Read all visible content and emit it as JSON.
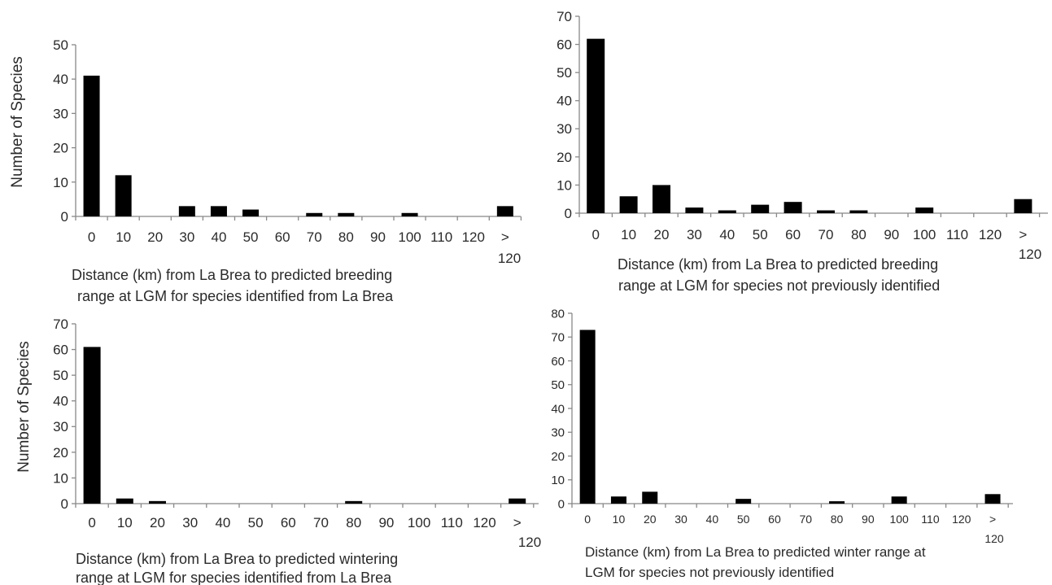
{
  "chart_data": [
    {
      "type": "bar",
      "categories": [
        "0",
        "10",
        "20",
        "30",
        "40",
        "50",
        "60",
        "70",
        "80",
        "90",
        "100",
        "110",
        "120",
        "> 120"
      ],
      "values": [
        41,
        12,
        0,
        3,
        3,
        2,
        0,
        1,
        1,
        0,
        1,
        0,
        0,
        3
      ],
      "ylabel": "Number  of Species",
      "xlabel_lines": [
        "Distance (km)  from La Brea to predicted  breeding",
        "range at LGM for species identified  from La Brea"
      ],
      "ylim": [
        0,
        50
      ],
      "yticks": [
        0,
        10,
        20,
        30,
        40,
        50
      ],
      "grid": false
    },
    {
      "type": "bar",
      "categories": [
        "0",
        "10",
        "20",
        "30",
        "40",
        "50",
        "60",
        "70",
        "80",
        "90",
        "100",
        "110",
        "120",
        "> 120"
      ],
      "values": [
        62,
        6,
        10,
        2,
        1,
        3,
        4,
        1,
        1,
        0,
        2,
        0,
        0,
        5
      ],
      "ylabel": "",
      "xlabel_lines": [
        "Distance (km)  from La Brea to predicted  breeding",
        "range at LGM for species not previously identified"
      ],
      "ylim": [
        0,
        70
      ],
      "yticks": [
        0,
        10,
        20,
        30,
        40,
        50,
        60,
        70
      ],
      "grid": false
    },
    {
      "type": "bar",
      "categories": [
        "0",
        "10",
        "20",
        "30",
        "40",
        "50",
        "60",
        "70",
        "80",
        "90",
        "100",
        "110",
        "120",
        "> 120"
      ],
      "values": [
        61,
        2,
        1,
        0,
        0,
        0,
        0,
        0,
        1,
        0,
        0,
        0,
        0,
        2
      ],
      "ylabel": "Number  of Species",
      "xlabel_lines": [
        "Distance (km)  from La Brea to predicted  wintering",
        "range at LGM for species identified  from La Brea"
      ],
      "ylim": [
        0,
        70
      ],
      "yticks": [
        0,
        10,
        20,
        30,
        40,
        50,
        60,
        70
      ],
      "grid": false
    },
    {
      "type": "bar",
      "categories": [
        "0",
        "10",
        "20",
        "30",
        "40",
        "50",
        "60",
        "70",
        "80",
        "90",
        "100",
        "110",
        "120",
        "> 120"
      ],
      "values": [
        73,
        3,
        5,
        0,
        0,
        2,
        0,
        0,
        1,
        0,
        3,
        0,
        0,
        4
      ],
      "ylabel": "",
      "xlabel_lines": [
        "Distance (km) from La Brea to predicted winter range at",
        "LGM for species not previously identified"
      ],
      "ylim": [
        0,
        80
      ],
      "yticks": [
        0,
        10,
        20,
        30,
        40,
        50,
        60,
        70,
        80
      ],
      "grid": false
    }
  ]
}
